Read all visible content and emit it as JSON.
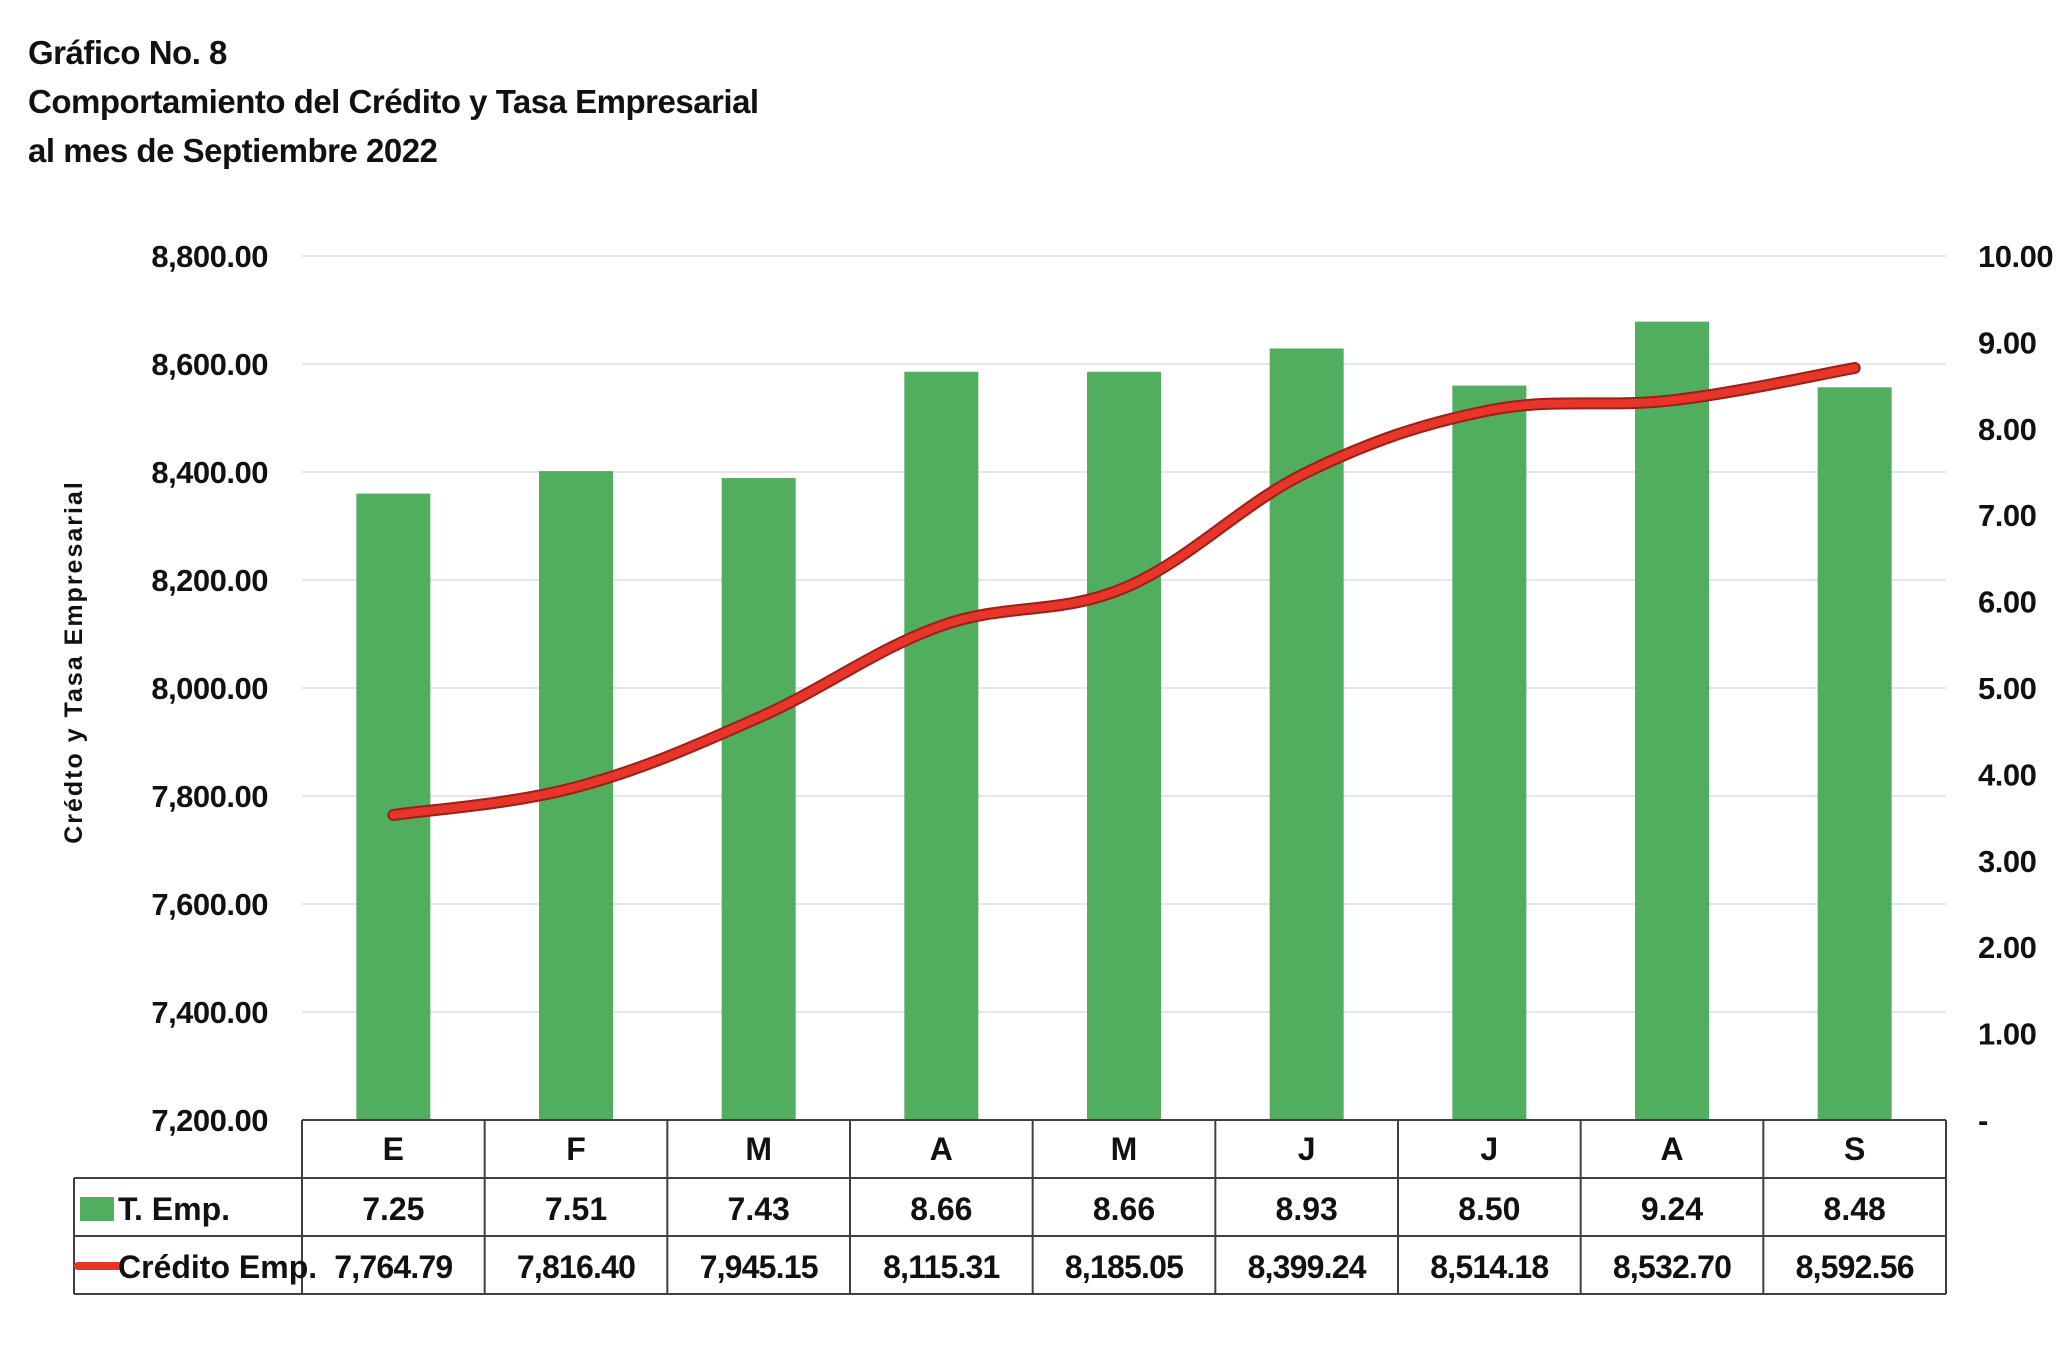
{
  "title": {
    "line1": "Gráfico No. 8",
    "line2": "Comportamiento del Crédito y Tasa Empresarial",
    "line3": "al mes de Septiembre  2022"
  },
  "colors": {
    "bar": "#52AE5F",
    "line": "#E8352A",
    "line_shadow": "#9A2018",
    "grid": "#E6E6E6",
    "table_border": "#404040"
  },
  "chart_data": {
    "type": "bar",
    "categories": [
      "E",
      "F",
      "M",
      "A",
      "M",
      "J",
      "J",
      "A",
      "S"
    ],
    "ylabel": "Crédto y Tasa Empresarial",
    "ylim": [
      7200,
      8800
    ],
    "y2lim": [
      0,
      10
    ],
    "y_ticks": [
      "8,800.00",
      "8,600.00",
      "8,400.00",
      "8,200.00",
      "8,000.00",
      "7,800.00",
      "7,600.00",
      "7,400.00",
      "7,200.00"
    ],
    "y2_ticks": [
      "10.00",
      "9.00",
      "8.00",
      "7.00",
      "6.00",
      "5.00",
      "4.00",
      "3.00",
      "2.00",
      "1.00",
      "-"
    ],
    "grid": true,
    "legend": "data-table",
    "series": [
      {
        "name": "T. Emp.",
        "type": "bar",
        "axis": "right",
        "values": [
          7.25,
          7.51,
          7.43,
          8.66,
          8.66,
          8.93,
          8.5,
          9.24,
          8.48
        ],
        "labels": [
          "7.25",
          "7.51",
          "7.43",
          "8.66",
          "8.66",
          "8.93",
          "8.50",
          "9.24",
          "8.48"
        ]
      },
      {
        "name": "Crédito Emp.",
        "type": "line",
        "axis": "left",
        "values": [
          7764.79,
          7816.4,
          7945.15,
          8115.31,
          8185.05,
          8399.24,
          8514.18,
          8532.7,
          8592.56
        ],
        "labels": [
          "7,764.79",
          "7,816.40",
          "7,945.15",
          "8,115.31",
          "8,185.05",
          "8,399.24",
          "8,514.18",
          "8,532.70",
          "8,592.56"
        ]
      }
    ]
  }
}
